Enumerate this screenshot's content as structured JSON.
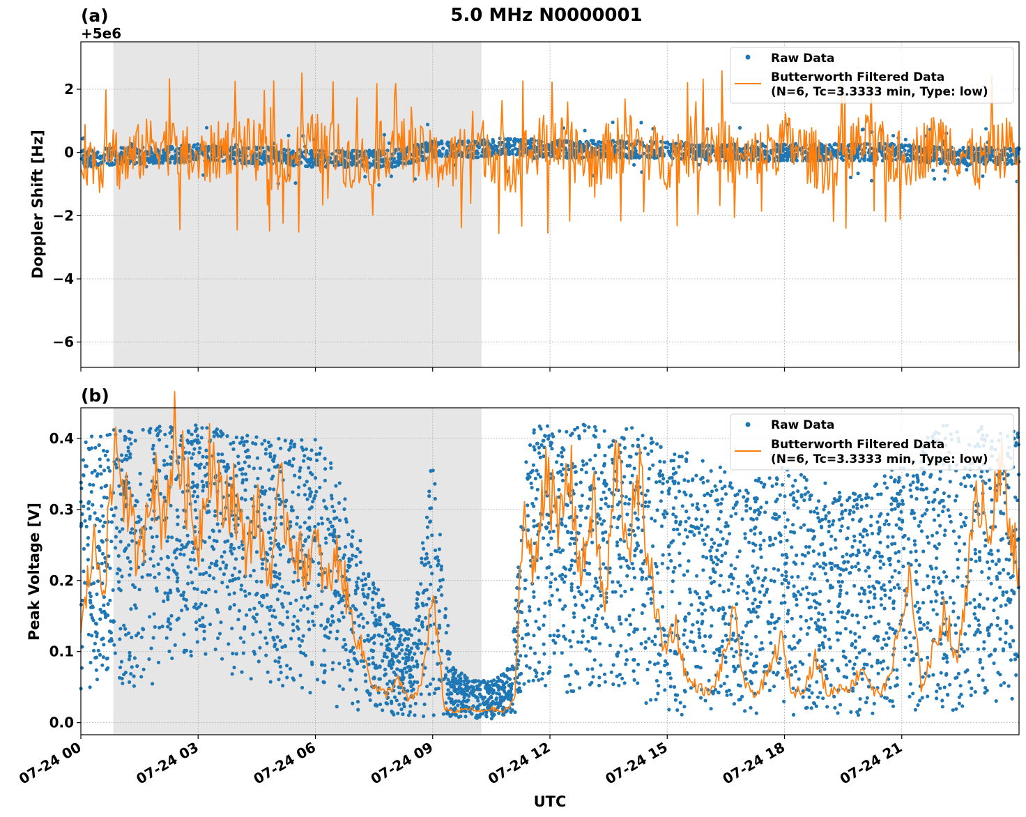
{
  "figure": {
    "title": "5.0 MHz N0000001",
    "xlabel": "UTC",
    "x_tick_labels": [
      "07-24 00",
      "07-24 03",
      "07-24 06",
      "07-24 09",
      "07-24 12",
      "07-24 15",
      "07-24 18",
      "07-24 21"
    ]
  },
  "colors": {
    "raw": "#1f77b4",
    "filtered": "#ff7f0e",
    "shade": "#e6e6e6",
    "grid": "#b0b0b0"
  },
  "chart_data": [
    {
      "panel_label": "(a)",
      "type": "line",
      "ylabel": "Doppler Shift [Hz]",
      "offset_label": "+5e6",
      "y_tick_values": [
        2,
        0,
        -2,
        -4,
        -6
      ],
      "y_tick_labels": [
        "2",
        "0",
        "−2",
        "−4",
        "−6"
      ],
      "xlim_hours": [
        0,
        24
      ],
      "ylim": [
        -6.8,
        3.5
      ],
      "shaded_region_hours": [
        0.83,
        10.25
      ],
      "grid": true,
      "legend_position": "top-right",
      "legend": [
        "Raw Data",
        "Butterworth Filtered Data",
        "(N=6, Tc=3.3333 min, Type: low)"
      ],
      "series": [
        {
          "name": "Raw Data",
          "style": "scatter",
          "x_hours": [
            0,
            1,
            2,
            3,
            4,
            5,
            6,
            7,
            8,
            9,
            10,
            11,
            12,
            13,
            14,
            15,
            16,
            17,
            18,
            19,
            20,
            21,
            22,
            23,
            24
          ],
          "values": [
            -0.2,
            -0.1,
            -0.1,
            0,
            -0.1,
            -0.1,
            -0.2,
            -0.2,
            -0.2,
            0.1,
            0.1,
            0.2,
            0.1,
            0.1,
            0.1,
            0.1,
            0,
            0,
            0,
            0,
            0,
            0,
            -0.1,
            -0.1,
            -0.1
          ]
        },
        {
          "name": "Butterworth Filtered Data",
          "style": "line",
          "x_hours": [
            0,
            0.5,
            0.75,
            1,
            2,
            3,
            4,
            5,
            6,
            7,
            7.1,
            8,
            9,
            9.5,
            10,
            11,
            12,
            13,
            14,
            15,
            16,
            17,
            18,
            19,
            20,
            21,
            22,
            23,
            23.9,
            24
          ],
          "values": [
            0.5,
            -2.8,
            3.0,
            -2.7,
            2.6,
            -2.0,
            2.4,
            -2.1,
            2.3,
            -1.9,
            -2.6,
            2.0,
            -1.8,
            -2.3,
            2.9,
            -2.7,
            2.7,
            -1.9,
            2.3,
            -1.6,
            3.1,
            -2.5,
            2.5,
            -2.4,
            2.2,
            -1.8,
            2.8,
            -2.4,
            2.5,
            -6.3
          ]
        }
      ]
    },
    {
      "panel_label": "(b)",
      "type": "line",
      "ylabel": "Peak Voltage [V]",
      "y_tick_values": [
        0.4,
        0.3,
        0.2,
        0.1,
        0.0
      ],
      "y_tick_labels": [
        "0.4",
        "0.3",
        "0.2",
        "0.1",
        "0.0"
      ],
      "xlim_hours": [
        0,
        24
      ],
      "ylim": [
        -0.017,
        0.443
      ],
      "shaded_region_hours": [
        0.83,
        10.25
      ],
      "grid": true,
      "legend_position": "top-right",
      "legend": [
        "Raw Data",
        "Butterworth Filtered Data",
        "(N=6, Tc=3.3333 min, Type: low)"
      ],
      "series": [
        {
          "name": "Raw Data",
          "style": "envelope",
          "x_hours": [
            0,
            0.5,
            1,
            2,
            3,
            4,
            5,
            6,
            6.5,
            7,
            7.5,
            8,
            8.5,
            9,
            9.5,
            10,
            10.5,
            11,
            11.4,
            11.6,
            12,
            13,
            14,
            14.5,
            15,
            16,
            17,
            18,
            19,
            20,
            21,
            22,
            23,
            24
          ],
          "upper": [
            0.4,
            0.41,
            0.42,
            0.42,
            0.42,
            0.41,
            0.4,
            0.4,
            0.36,
            0.28,
            0.2,
            0.14,
            0.13,
            0.38,
            0.08,
            0.06,
            0.06,
            0.08,
            0.38,
            0.42,
            0.42,
            0.42,
            0.42,
            0.42,
            0.4,
            0.37,
            0.34,
            0.36,
            0.34,
            0.32,
            0.37,
            0.42,
            0.42,
            0.41
          ],
          "lower": [
            0.03,
            0.05,
            0.04,
            0.05,
            0.1,
            0.06,
            0.04,
            0.04,
            0.02,
            0.02,
            0.01,
            0.01,
            0.01,
            0.005,
            0.005,
            0.005,
            0.005,
            0.005,
            0.02,
            0.05,
            0.04,
            0.03,
            0.05,
            0.02,
            0.01,
            0.01,
            0.01,
            0.01,
            0.01,
            0.01,
            0.01,
            0.01,
            0.02,
            0.03
          ]
        },
        {
          "name": "Butterworth Filtered Data",
          "style": "line",
          "x_hours": [
            0,
            0.3,
            0.6,
            0.9,
            1.2,
            1.5,
            1.8,
            2.1,
            2.4,
            2.7,
            3.0,
            3.3,
            3.6,
            3.9,
            4.2,
            4.5,
            4.8,
            5.1,
            5.4,
            5.7,
            6.0,
            6.3,
            6.6,
            6.9,
            7.2,
            7.5,
            7.8,
            8.1,
            8.4,
            8.7,
            9.0,
            9.3,
            9.6,
            9.9,
            10.2,
            10.5,
            10.8,
            11.1,
            11.3,
            11.6,
            11.9,
            12.2,
            12.5,
            12.8,
            13.1,
            13.4,
            13.7,
            14.0,
            14.3,
            14.6,
            14.9,
            15.2,
            15.5,
            15.8,
            16.1,
            16.4,
            16.7,
            17.0,
            17.3,
            17.6,
            17.9,
            18.2,
            18.5,
            18.8,
            19.1,
            19.4,
            19.7,
            20.0,
            20.3,
            20.6,
            20.9,
            21.2,
            21.5,
            21.8,
            22.1,
            22.4,
            22.7,
            23.0,
            23.3,
            23.6,
            24.0
          ],
          "values": [
            0.12,
            0.25,
            0.2,
            0.4,
            0.3,
            0.22,
            0.36,
            0.28,
            0.4,
            0.33,
            0.25,
            0.39,
            0.3,
            0.33,
            0.24,
            0.3,
            0.2,
            0.32,
            0.26,
            0.22,
            0.25,
            0.19,
            0.24,
            0.15,
            0.1,
            0.05,
            0.04,
            0.06,
            0.03,
            0.05,
            0.18,
            0.02,
            0.015,
            0.02,
            0.015,
            0.02,
            0.015,
            0.03,
            0.3,
            0.2,
            0.38,
            0.26,
            0.36,
            0.2,
            0.32,
            0.15,
            0.38,
            0.25,
            0.34,
            0.2,
            0.1,
            0.14,
            0.06,
            0.05,
            0.04,
            0.08,
            0.15,
            0.05,
            0.04,
            0.07,
            0.12,
            0.04,
            0.05,
            0.09,
            0.04,
            0.05,
            0.05,
            0.08,
            0.04,
            0.05,
            0.12,
            0.2,
            0.05,
            0.1,
            0.16,
            0.08,
            0.22,
            0.33,
            0.28,
            0.36,
            0.2
          ]
        }
      ]
    }
  ]
}
